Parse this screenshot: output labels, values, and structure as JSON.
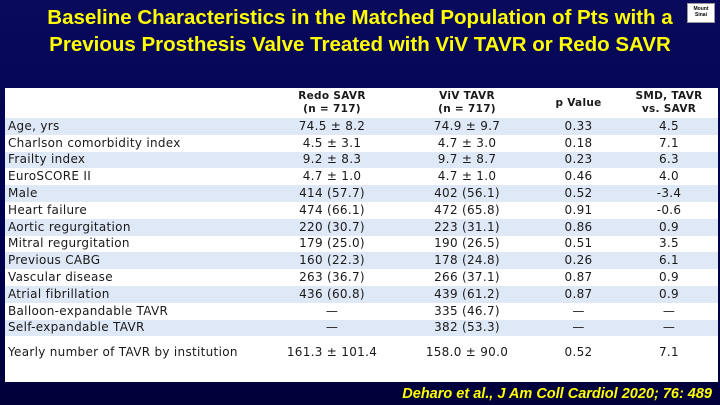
{
  "slide": {
    "title": "Baseline Characteristics in the Matched Population of Pts with a Previous Prosthesis Valve Treated with ViV TAVR or Redo SAVR",
    "logo_text": "Mount Sinai",
    "citation": "Deharo et al., J Am Coll Cardiol 2020; 76: 489",
    "colors": {
      "background": "#000050",
      "title": "#ffff00",
      "row_shade": "#dfe8f6"
    }
  },
  "table": {
    "headers": {
      "label": "",
      "redo_savr": "Redo SAVR",
      "redo_savr_n": "(n = 717)",
      "viv_tavr": "ViV TAVR",
      "viv_tavr_n": "(n = 717)",
      "p_value": "p Value",
      "smd": "SMD, TAVR",
      "smd_sub": "vs. SAVR"
    },
    "rows": [
      {
        "label": "Age, yrs",
        "redo": "74.5 ± 8.2",
        "viv": "74.9 ± 9.7",
        "p": "0.33",
        "smd": "4.5"
      },
      {
        "label": "Charlson comorbidity index",
        "redo": "4.5 ± 3.1",
        "viv": "4.7 ± 3.0",
        "p": "0.18",
        "smd": "7.1"
      },
      {
        "label": "Frailty index",
        "redo": "9.2 ± 8.3",
        "viv": "9.7 ± 8.7",
        "p": "0.23",
        "smd": "6.3"
      },
      {
        "label": "EuroSCORE II",
        "redo": "4.7 ± 1.0",
        "viv": "4.7 ± 1.0",
        "p": "0.46",
        "smd": "4.0"
      },
      {
        "label": "Male",
        "redo": "414 (57.7)",
        "viv": "402 (56.1)",
        "p": "0.52",
        "smd": "-3.4"
      },
      {
        "label": "Heart failure",
        "redo": "474 (66.1)",
        "viv": "472 (65.8)",
        "p": "0.91",
        "smd": "-0.6"
      },
      {
        "label": "Aortic regurgitation",
        "redo": "220 (30.7)",
        "viv": "223 (31.1)",
        "p": "0.86",
        "smd": "0.9"
      },
      {
        "label": "Mitral regurgitation",
        "redo": "179 (25.0)",
        "viv": "190 (26.5)",
        "p": "0.51",
        "smd": "3.5"
      },
      {
        "label": "Previous CABG",
        "redo": "160 (22.3)",
        "viv": "178 (24.8)",
        "p": "0.26",
        "smd": "6.1"
      },
      {
        "label": "Vascular disease",
        "redo": "263 (36.7)",
        "viv": "266 (37.1)",
        "p": "0.87",
        "smd": "0.9"
      },
      {
        "label": "Atrial fibrillation",
        "redo": "436 (60.8)",
        "viv": "439 (61.2)",
        "p": "0.87",
        "smd": "0.9"
      },
      {
        "label": "Balloon-expandable TAVR",
        "redo": "—",
        "viv": "335 (46.7)",
        "p": "—",
        "smd": "—"
      },
      {
        "label": "Self-expandable TAVR",
        "redo": "—",
        "viv": "382 (53.3)",
        "p": "—",
        "smd": "—"
      },
      {
        "label": "Yearly number of TAVR by institution",
        "redo": "161.3 ± 101.4",
        "viv": "158.0 ± 90.0",
        "p": "0.52",
        "smd": "7.1"
      }
    ]
  }
}
